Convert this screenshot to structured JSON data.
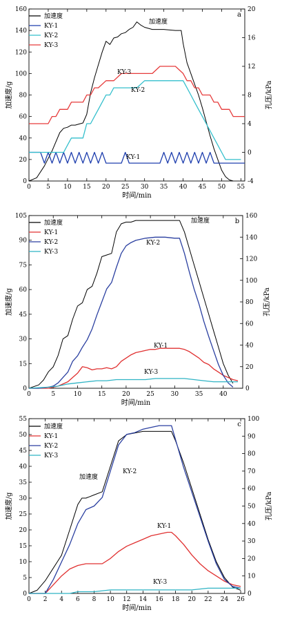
{
  "chart_data": [
    {
      "panel": "a",
      "type": "line",
      "xlabel": "时间/min",
      "ylabel": "加速度/g",
      "y2label": "孔压/kPa",
      "xlim": [
        0,
        56
      ],
      "ylim": [
        0,
        160
      ],
      "y2lim": [
        -4,
        20
      ],
      "xticks": [
        0,
        5,
        10,
        15,
        20,
        25,
        30,
        35,
        40,
        45,
        50,
        55
      ],
      "yticks": [
        0,
        20,
        40,
        60,
        80,
        100,
        120,
        140,
        160
      ],
      "y2ticks": [
        -4,
        0,
        4,
        8,
        12,
        16,
        20
      ],
      "legend": {
        "placement": "top-left",
        "entries": [
          "加速度",
          "KY-1",
          "KY-2",
          "KY-3"
        ]
      },
      "annotations": [
        "加速度",
        "KY-3",
        "KY-2",
        "KY-1"
      ],
      "series": [
        {
          "name": "加速度",
          "color": "#000000",
          "axis": "left",
          "x": [
            0,
            2,
            4,
            6,
            8,
            9,
            10,
            11,
            12,
            13,
            14,
            15,
            16,
            17,
            18,
            19,
            20,
            21,
            22,
            23,
            24,
            25,
            26,
            27,
            28,
            29,
            30,
            32,
            35,
            38,
            39.5,
            40,
            41,
            42,
            43,
            44,
            45,
            46,
            47,
            48,
            49,
            50,
            51,
            52,
            53
          ],
          "y": [
            0,
            3,
            14,
            28,
            45,
            49,
            50,
            52,
            52,
            53,
            54,
            62,
            82,
            96,
            108,
            120,
            130,
            127,
            133,
            134,
            137,
            138,
            141,
            143,
            148,
            145,
            143,
            141,
            141,
            140,
            140,
            128,
            110,
            100,
            90,
            80,
            68,
            55,
            42,
            30,
            20,
            10,
            4,
            1,
            0
          ]
        },
        {
          "name": "KY-1",
          "color": "#1f3fae",
          "axis": "right",
          "x": [
            0,
            1,
            2,
            3,
            4,
            5,
            6,
            7,
            8,
            9,
            10,
            11,
            12,
            13,
            14,
            15,
            16,
            17,
            18,
            19,
            20,
            21,
            22,
            23,
            24,
            25,
            26,
            27,
            28,
            29,
            30,
            31,
            32,
            33,
            34,
            35,
            36,
            37,
            38,
            39,
            40,
            41,
            42,
            43,
            44,
            45,
            46,
            47,
            48,
            49,
            50,
            51,
            52,
            53,
            54,
            55,
            56
          ],
          "y": [
            0,
            0,
            0,
            0,
            -1.5,
            0,
            -1.5,
            0,
            -1.5,
            0,
            -1.5,
            0,
            -1.5,
            0,
            -1.5,
            0,
            -1.5,
            0,
            -1.5,
            0,
            -1.5,
            -1.5,
            -1.5,
            -1.5,
            -1.5,
            0,
            -1.5,
            -1.5,
            -1.5,
            -1.5,
            -1.5,
            -1.5,
            -1.5,
            -1.5,
            -1.5,
            0,
            -1.5,
            0,
            -1.5,
            0,
            -1.5,
            0,
            -1.5,
            0,
            -1.5,
            0,
            -1.5,
            0,
            -1.5,
            -1.5,
            -1.5,
            -1.5,
            -1.5,
            -1.5,
            -1.5,
            -1.5,
            -1.5
          ]
        },
        {
          "name": "KY-2",
          "color": "#33bfcc",
          "axis": "right",
          "x": [
            0,
            5,
            6,
            7,
            8,
            9,
            10,
            11,
            12,
            13,
            14,
            15,
            16,
            17,
            18,
            19,
            20,
            21,
            22,
            24,
            26,
            28,
            30,
            32,
            34,
            36,
            38,
            40,
            41,
            42,
            43,
            44,
            45,
            46,
            47,
            48,
            49,
            50,
            51,
            52,
            53,
            54,
            55
          ],
          "y": [
            0,
            0,
            0,
            0,
            0,
            0,
            1,
            2,
            2,
            2,
            2,
            4,
            4,
            5,
            6,
            7,
            8,
            8,
            9,
            9,
            9,
            9,
            10,
            10,
            10,
            10,
            10,
            10,
            9,
            8,
            7,
            6,
            5,
            4,
            3,
            2,
            1,
            0,
            -1,
            -1,
            -1,
            -1,
            -1
          ]
        },
        {
          "name": "KY-3",
          "color": "#e63a3a",
          "axis": "right",
          "x": [
            0,
            1,
            2,
            3,
            4,
            5,
            6,
            7,
            8,
            9,
            10,
            11,
            12,
            13,
            14,
            15,
            16,
            17,
            18,
            20,
            22,
            24,
            26,
            28,
            30,
            32,
            34,
            36,
            38,
            40,
            41,
            42,
            43,
            44,
            45,
            46,
            47,
            48,
            49,
            50,
            51,
            52,
            53,
            54,
            55,
            56
          ],
          "y": [
            4,
            4,
            4,
            4,
            4,
            4,
            5,
            5,
            6,
            6,
            6,
            7,
            7,
            7,
            7,
            8,
            8,
            9,
            9,
            10,
            10,
            11,
            11,
            11,
            11,
            11,
            12,
            12,
            12,
            11,
            10,
            10,
            9,
            9,
            8,
            8,
            8,
            7,
            7,
            6,
            6,
            6,
            5,
            5,
            5,
            5
          ]
        }
      ]
    },
    {
      "panel": "b",
      "type": "line",
      "xlabel": "时间/min",
      "ylabel": "加速度/g",
      "y2label": "孔压/kPa",
      "xlim": [
        0,
        44
      ],
      "ylim": [
        0,
        105
      ],
      "y2lim": [
        0,
        160
      ],
      "xticks": [
        0,
        5,
        10,
        15,
        20,
        25,
        30,
        35,
        40
      ],
      "yticks": [
        0,
        15,
        30,
        45,
        60,
        75,
        90,
        105
      ],
      "y2ticks": [
        0,
        20,
        40,
        60,
        80,
        100,
        120,
        140,
        160
      ],
      "legend": {
        "placement": "top-left",
        "entries": [
          "加速度",
          "KY-1",
          "KY-2",
          "KY-3"
        ]
      },
      "annotations": [
        "加速度",
        "KY-2",
        "KY-1",
        "KY-3"
      ],
      "series": [
        {
          "name": "加速度",
          "color": "#000000",
          "axis": "left",
          "x": [
            0,
            2,
            3,
            4,
            5,
            6,
            7,
            8,
            9,
            10,
            11,
            12,
            13,
            14,
            15,
            16,
            17,
            18,
            19,
            20,
            21,
            22,
            25,
            28,
            30,
            31,
            32,
            33,
            34,
            35,
            36,
            37,
            38,
            39,
            40,
            41,
            42
          ],
          "y": [
            0,
            2,
            5,
            10,
            13,
            20,
            30,
            32,
            42,
            50,
            52,
            60,
            62,
            70,
            80,
            81,
            82,
            95,
            100,
            101,
            101,
            102,
            102,
            102,
            102,
            102,
            95,
            85,
            75,
            65,
            55,
            45,
            35,
            25,
            15,
            8,
            3
          ]
        },
        {
          "name": "KY-1",
          "color": "#e03030",
          "axis": "right",
          "x": [
            0,
            2,
            4,
            6,
            8,
            9,
            10,
            11,
            12,
            13,
            14,
            15,
            16,
            17,
            18,
            19,
            20,
            21,
            22,
            23,
            24,
            25,
            26,
            27,
            28,
            29,
            30,
            31,
            32,
            33,
            34,
            35,
            36,
            37,
            38,
            39,
            40,
            41,
            42,
            43
          ],
          "y": [
            0,
            0,
            0,
            2,
            6,
            10,
            14,
            20,
            19,
            17,
            18,
            18,
            19,
            18,
            20,
            25,
            28,
            31,
            33,
            34,
            35,
            36,
            36,
            37,
            37,
            37,
            37,
            37,
            36,
            34,
            31,
            28,
            24,
            22,
            18,
            15,
            12,
            10,
            8,
            7
          ]
        },
        {
          "name": "KY-2",
          "color": "#2a3fa0",
          "axis": "right",
          "x": [
            0,
            2,
            4,
            5,
            6,
            7,
            8,
            9,
            10,
            11,
            12,
            13,
            14,
            15,
            16,
            17,
            18,
            19,
            20,
            21,
            22,
            24,
            26,
            28,
            30,
            31,
            32,
            33,
            34,
            35,
            36,
            37,
            38,
            39,
            40,
            41,
            42
          ],
          "y": [
            0,
            0,
            1,
            2,
            5,
            10,
            15,
            25,
            30,
            38,
            45,
            55,
            68,
            80,
            92,
            98,
            112,
            125,
            132,
            135,
            137,
            139,
            140,
            140,
            139,
            139,
            125,
            108,
            92,
            78,
            62,
            48,
            35,
            22,
            12,
            5,
            1
          ]
        },
        {
          "name": "KY-3",
          "color": "#2fb3c4",
          "axis": "right",
          "x": [
            0,
            4,
            6,
            8,
            10,
            12,
            14,
            16,
            18,
            20,
            22,
            24,
            26,
            28,
            30,
            32,
            34,
            36,
            38,
            40,
            42,
            43
          ],
          "y": [
            0,
            1,
            2,
            4,
            5,
            6,
            7,
            7,
            8,
            8,
            8,
            8,
            9,
            9,
            9,
            9,
            8,
            7,
            6,
            6,
            6,
            6
          ]
        }
      ]
    },
    {
      "panel": "c",
      "type": "line",
      "xlabel": "时间/min",
      "ylabel": "加速度/g",
      "y2label": "孔压/kPa",
      "xlim": [
        0,
        26.5
      ],
      "ylim": [
        0,
        55
      ],
      "y2lim": [
        0,
        100
      ],
      "xticks": [
        0,
        2,
        4,
        6,
        8,
        10,
        12,
        14,
        16,
        18,
        20,
        22,
        24,
        26
      ],
      "yticks": [
        0,
        5,
        10,
        15,
        20,
        25,
        30,
        35,
        40,
        45,
        50,
        55
      ],
      "y2ticks": [
        0,
        10,
        20,
        30,
        40,
        50,
        60,
        70,
        80,
        90,
        100
      ],
      "legend": {
        "placement": "top-left",
        "entries": [
          "加速度",
          "KY-1",
          "KY-2",
          "KY-3"
        ]
      },
      "annotations": [
        "加速度",
        "KY-2",
        "KY-1",
        "KY-3"
      ],
      "series": [
        {
          "name": "加速度",
          "color": "#000000",
          "axis": "left",
          "x": [
            0,
            1,
            2,
            3,
            3.5,
            4,
            5,
            6,
            6.5,
            7,
            8,
            9,
            10,
            11,
            12,
            13,
            14,
            15,
            16,
            17,
            17.5,
            18,
            19,
            20,
            21,
            22,
            23,
            24,
            25,
            26
          ],
          "y": [
            0,
            1,
            4,
            8,
            10,
            12,
            20,
            28,
            30,
            30,
            31,
            32,
            40,
            48,
            50,
            50.5,
            51,
            51,
            51,
            51,
            51,
            48,
            41,
            33,
            25,
            17,
            10,
            5,
            2,
            1
          ]
        },
        {
          "name": "KY-1",
          "color": "#e03030",
          "axis": "right",
          "x": [
            0,
            2,
            3,
            4,
            5,
            6,
            7,
            8,
            9,
            10,
            11,
            12,
            13,
            14,
            15,
            16,
            17,
            17.5,
            18,
            19,
            20,
            21,
            22,
            23,
            24,
            25,
            26
          ],
          "y": [
            0,
            0,
            5,
            10,
            14,
            16,
            17,
            17,
            17,
            20,
            24,
            27,
            29,
            31,
            33,
            34,
            35,
            35,
            33,
            28,
            22,
            17,
            13,
            10,
            7,
            5,
            4
          ]
        },
        {
          "name": "KY-2",
          "color": "#2a3fa0",
          "axis": "right",
          "x": [
            0,
            2,
            3,
            4,
            5,
            6,
            7,
            8,
            9,
            10,
            11,
            12,
            13,
            14,
            15,
            16,
            17,
            17.5,
            18,
            19,
            20,
            21,
            22,
            23,
            24,
            25,
            26
          ],
          "y": [
            0,
            0,
            8,
            18,
            28,
            40,
            48,
            50,
            55,
            70,
            85,
            91,
            92,
            94,
            95,
            96,
            96,
            96,
            88,
            72,
            58,
            44,
            30,
            17,
            8,
            4,
            3
          ]
        },
        {
          "name": "KY-3",
          "color": "#2fb3c4",
          "axis": "right",
          "x": [
            0,
            5,
            6,
            8,
            10,
            12,
            14,
            16,
            18,
            20,
            22,
            24,
            26
          ],
          "y": [
            0,
            0,
            1,
            1,
            2,
            2,
            2,
            2,
            2,
            2,
            3,
            3,
            3
          ]
        }
      ]
    }
  ]
}
